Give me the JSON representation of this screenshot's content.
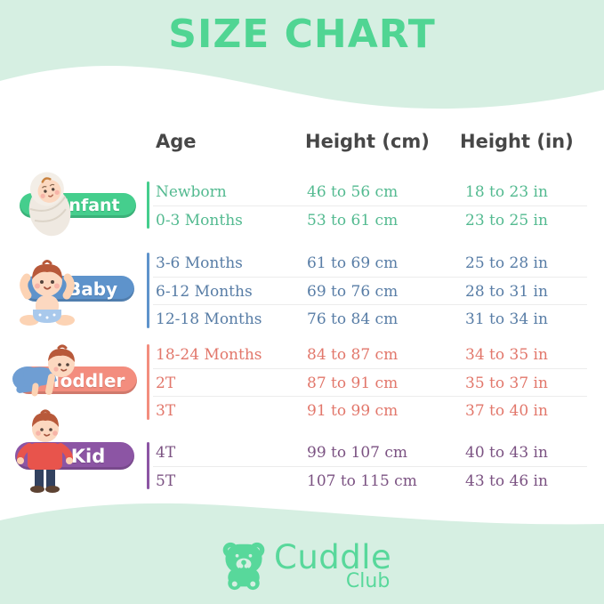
{
  "page_title": "SIZE CHART",
  "chart_data": {
    "type": "table",
    "title": "SIZE CHART",
    "columns": [
      "Age",
      "Height (cm)",
      "Height (in)"
    ],
    "groups": [
      {
        "category": "Infant",
        "pill_color": "#45ce8d",
        "text_color": "#53ba90",
        "rows": [
          [
            "Newborn",
            "46 to 56 cm",
            "18 to 23 in"
          ],
          [
            "0-3 Months",
            "53 to 61 cm",
            "23 to 25 in"
          ]
        ]
      },
      {
        "category": "Baby",
        "pill_color": "#5e93cb",
        "text_color": "#587da6",
        "rows": [
          [
            "3-6 Months",
            "61 to 69 cm",
            "25 to 28 in"
          ],
          [
            "6-12 Months",
            "69 to 76 cm",
            "28 to 31 in"
          ],
          [
            "12-18 Months",
            "76 to 84 cm",
            "31 to 34 in"
          ]
        ]
      },
      {
        "category": "Toddler",
        "pill_color": "#f38d7e",
        "text_color": "#e2776b",
        "rows": [
          [
            "18-24 Months",
            "84 to 87 cm",
            "34 to 35 in"
          ],
          [
            "2T",
            "87 to 91 cm",
            "35 to 37 in"
          ],
          [
            "3T",
            "91 to 99 cm",
            "37 to 40 in"
          ]
        ]
      },
      {
        "category": "Kid",
        "pill_color": "#8c55a4",
        "text_color": "#7b5282",
        "rows": [
          [
            "4T",
            "99 to 107 cm",
            "40 to 43 in"
          ],
          [
            "5T",
            "107 to 115 cm",
            "43 to 46 in"
          ]
        ]
      }
    ]
  },
  "logo": {
    "brand": "Cuddle",
    "sub_brand": "Club",
    "color": "#58d89b"
  },
  "colors": {
    "background_mint": "#d6efe2",
    "card_white": "#ffffff",
    "title_green": "#50d593",
    "header_text": "#474747",
    "row_separator": "#ececec"
  }
}
